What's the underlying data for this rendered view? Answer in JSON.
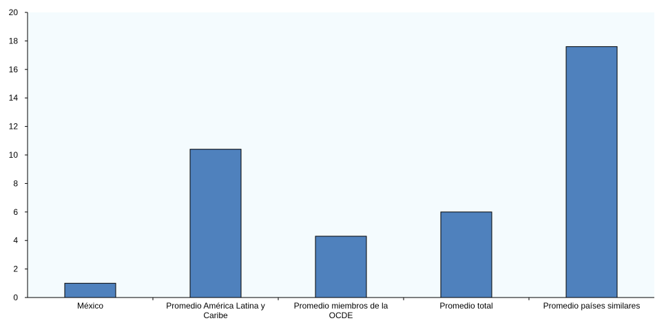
{
  "chart_data": {
    "type": "bar",
    "categories": [
      "México",
      "Promedio América Latina y Caribe",
      "Promedio miembros de la OCDE",
      "Promedio total",
      "Promedio países similares"
    ],
    "category_label_lines": [
      [
        "México"
      ],
      [
        "Promedio América Latina y",
        "Caribe"
      ],
      [
        "Promedio miembros de la",
        "OCDE"
      ],
      [
        "Promedio total"
      ],
      [
        "Promedio países similares"
      ]
    ],
    "series": [
      {
        "values": [
          1.0,
          10.4,
          4.3,
          6.0,
          17.6
        ]
      }
    ],
    "ylim": [
      0,
      20
    ],
    "yticks": [
      "0",
      "2",
      "4",
      "6",
      "8",
      "10",
      "12",
      "14",
      "16",
      "18",
      "20"
    ],
    "grid": false,
    "legend": "none",
    "colors": {
      "bar": "#4f81bd",
      "bar_stroke": "#000000",
      "plot_background": "#f4fbfe",
      "axis": "#000000"
    }
  }
}
